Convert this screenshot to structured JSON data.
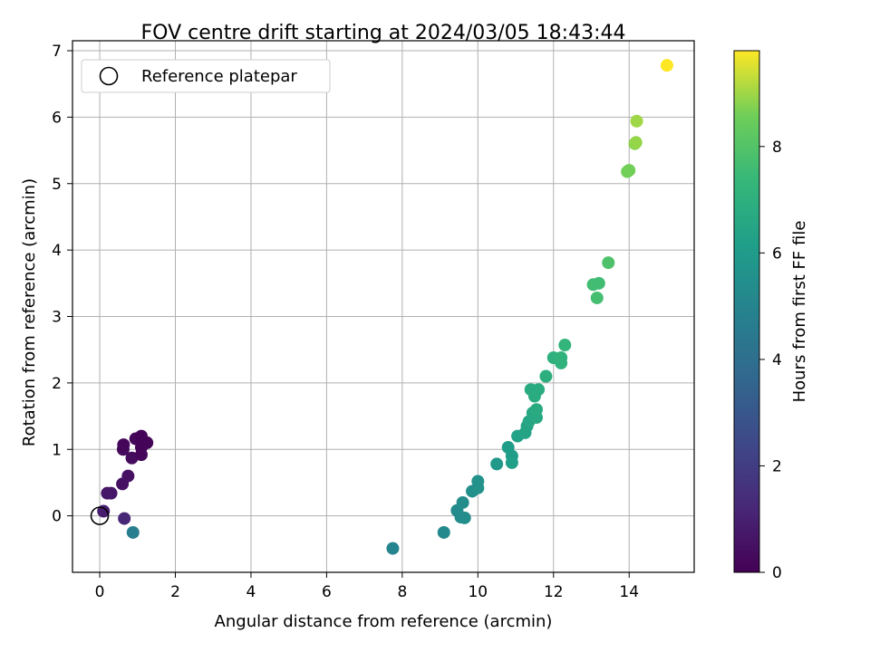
{
  "chart_data": {
    "type": "scatter",
    "title": "FOV centre drift starting at 2024/03/05 18:43:44",
    "xlabel": "Angular distance from reference (arcmin)",
    "ylabel": "Rotation from reference (arcmin)",
    "xlim": [
      -0.72,
      15.72
    ],
    "ylim": [
      -0.85,
      7.15
    ],
    "xticks": [
      0,
      2,
      4,
      6,
      8,
      10,
      12,
      14
    ],
    "yticks": [
      0,
      1,
      2,
      3,
      4,
      5,
      6,
      7
    ],
    "grid": true,
    "legend": {
      "position": "top-left",
      "entries": [
        "Reference platepar"
      ]
    },
    "reference_point": {
      "x": 0,
      "y": 0
    },
    "colorbar": {
      "label": "Hours from first FF file",
      "range": [
        0,
        9.8
      ],
      "ticks": [
        0,
        2,
        4,
        6,
        8
      ],
      "colormap": "viridis"
    },
    "points": [
      {
        "x": 0.1,
        "y": 0.07,
        "c": 0.9
      },
      {
        "x": 0.2,
        "y": 0.34,
        "c": 0.7
      },
      {
        "x": 0.3,
        "y": 0.34,
        "c": 0.7
      },
      {
        "x": 0.6,
        "y": 0.48,
        "c": 0.5
      },
      {
        "x": 0.75,
        "y": 0.6,
        "c": 0.5
      },
      {
        "x": 0.65,
        "y": -0.04,
        "c": 1.2
      },
      {
        "x": 0.62,
        "y": 1.0,
        "c": 0.3
      },
      {
        "x": 0.63,
        "y": 1.07,
        "c": 0.2
      },
      {
        "x": 0.85,
        "y": 0.87,
        "c": 0.3
      },
      {
        "x": 0.95,
        "y": 1.16,
        "c": 0.2
      },
      {
        "x": 1.1,
        "y": 1.2,
        "c": 0.1
      },
      {
        "x": 1.1,
        "y": 1.03,
        "c": 0.1
      },
      {
        "x": 1.25,
        "y": 1.1,
        "c": 0.1
      },
      {
        "x": 1.1,
        "y": 0.92,
        "c": 0.2
      },
      {
        "x": 0.88,
        "y": -0.25,
        "c": 4.7
      },
      {
        "x": 7.75,
        "y": -0.49,
        "c": 5.0
      },
      {
        "x": 9.1,
        "y": -0.25,
        "c": 5.2
      },
      {
        "x": 9.45,
        "y": 0.08,
        "c": 5.3
      },
      {
        "x": 9.55,
        "y": -0.02,
        "c": 5.3
      },
      {
        "x": 9.65,
        "y": -0.03,
        "c": 5.4
      },
      {
        "x": 9.6,
        "y": 0.2,
        "c": 5.4
      },
      {
        "x": 9.85,
        "y": 0.37,
        "c": 5.5
      },
      {
        "x": 10.0,
        "y": 0.42,
        "c": 5.6
      },
      {
        "x": 10.0,
        "y": 0.52,
        "c": 5.6
      },
      {
        "x": 10.5,
        "y": 0.78,
        "c": 5.9
      },
      {
        "x": 10.8,
        "y": 1.03,
        "c": 6.1
      },
      {
        "x": 10.9,
        "y": 0.9,
        "c": 6.1
      },
      {
        "x": 10.9,
        "y": 0.8,
        "c": 6.2
      },
      {
        "x": 11.05,
        "y": 1.2,
        "c": 6.3
      },
      {
        "x": 11.25,
        "y": 1.25,
        "c": 6.4
      },
      {
        "x": 11.3,
        "y": 1.35,
        "c": 6.4
      },
      {
        "x": 11.35,
        "y": 1.42,
        "c": 6.5
      },
      {
        "x": 11.45,
        "y": 1.55,
        "c": 6.6
      },
      {
        "x": 11.55,
        "y": 1.48,
        "c": 6.6
      },
      {
        "x": 11.55,
        "y": 1.6,
        "c": 6.7
      },
      {
        "x": 11.4,
        "y": 1.9,
        "c": 6.7
      },
      {
        "x": 11.5,
        "y": 1.8,
        "c": 6.8
      },
      {
        "x": 11.6,
        "y": 1.9,
        "c": 6.8
      },
      {
        "x": 11.8,
        "y": 2.1,
        "c": 6.9
      },
      {
        "x": 12.0,
        "y": 2.38,
        "c": 7.0
      },
      {
        "x": 12.2,
        "y": 2.38,
        "c": 7.1
      },
      {
        "x": 12.2,
        "y": 2.3,
        "c": 7.1
      },
      {
        "x": 12.3,
        "y": 2.57,
        "c": 7.2
      },
      {
        "x": 13.05,
        "y": 3.48,
        "c": 7.6
      },
      {
        "x": 13.2,
        "y": 3.5,
        "c": 7.6
      },
      {
        "x": 13.15,
        "y": 3.28,
        "c": 7.7
      },
      {
        "x": 13.45,
        "y": 3.81,
        "c": 7.9
      },
      {
        "x": 13.95,
        "y": 5.18,
        "c": 8.6
      },
      {
        "x": 14.0,
        "y": 5.2,
        "c": 8.6
      },
      {
        "x": 14.15,
        "y": 5.6,
        "c": 8.8
      },
      {
        "x": 14.18,
        "y": 5.62,
        "c": 8.9
      },
      {
        "x": 14.2,
        "y": 5.94,
        "c": 9.0
      },
      {
        "x": 15.0,
        "y": 6.78,
        "c": 9.8
      }
    ]
  }
}
